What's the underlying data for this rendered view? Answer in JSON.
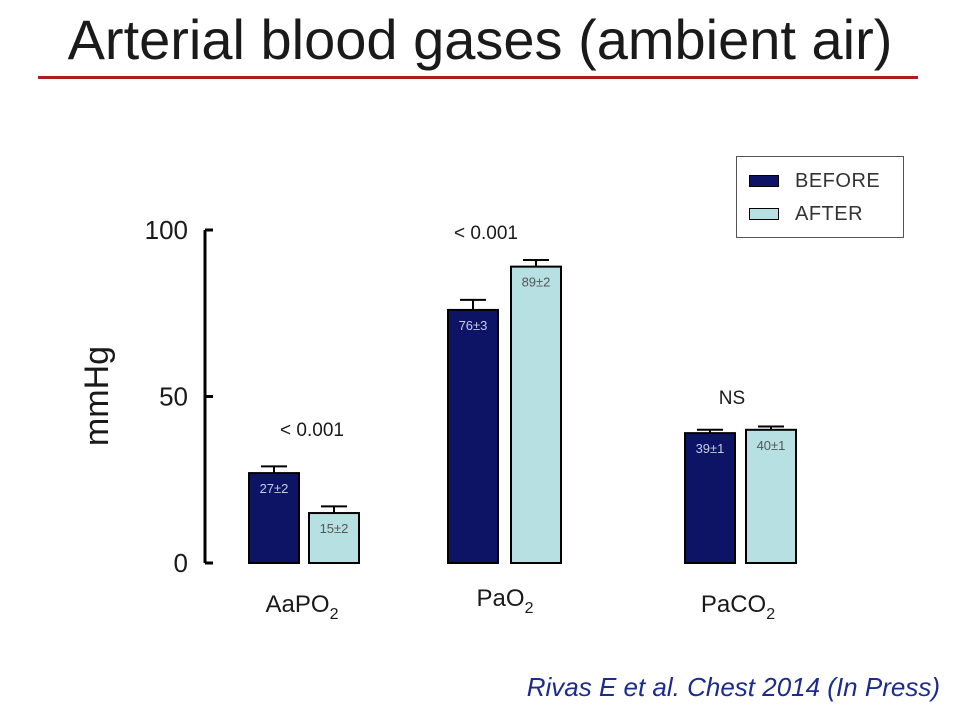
{
  "title": "Arterial blood gases (ambient air)",
  "citation": "Rivas E et al. Chest 2014 (In Press)",
  "colors": {
    "before": "#0d1466",
    "after": "#b7e0e3",
    "title_rule": "#b01c1c",
    "citation": "#1c2b8c"
  },
  "chart_data": {
    "type": "bar",
    "ylabel": "mmHg",
    "ylim": [
      0,
      100
    ],
    "yticks": [
      "0",
      "50",
      "100"
    ],
    "groups": [
      {
        "label": "AaPO",
        "subscript": "2",
        "p_value": "< 0.001"
      },
      {
        "label": "PaO",
        "subscript": "2",
        "p_value": "< 0.001"
      },
      {
        "label": "PaCO",
        "subscript": "2",
        "p_value": "NS"
      }
    ],
    "series": [
      {
        "name": "BEFORE",
        "values": [
          27,
          76,
          39
        ],
        "errors": [
          2,
          3,
          1
        ],
        "labels": [
          "27±2",
          "76±3",
          "39±1"
        ]
      },
      {
        "name": "AFTER",
        "values": [
          15,
          89,
          40
        ],
        "errors": [
          2,
          2,
          1
        ],
        "labels": [
          "15±2",
          "89±2",
          "40±1"
        ]
      }
    ],
    "legend_position": "top-right"
  }
}
